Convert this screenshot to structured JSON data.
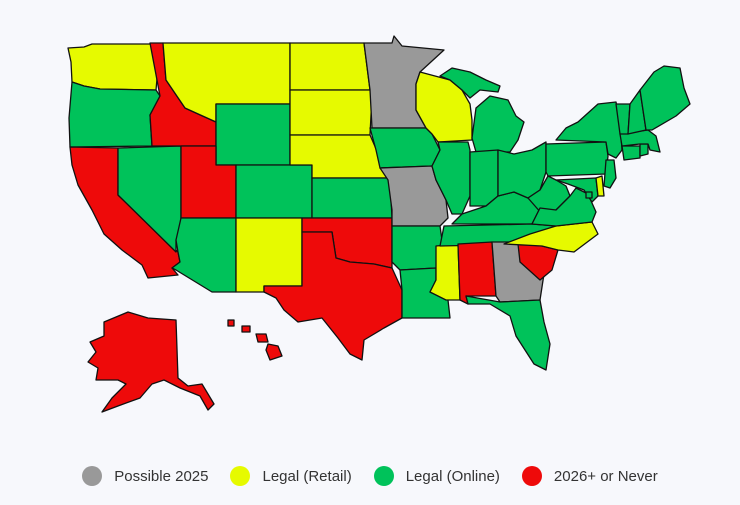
{
  "legend": {
    "items": [
      {
        "label": "Possible 2025",
        "status": "possible",
        "color": "#999999"
      },
      {
        "label": "Legal (Retail)",
        "status": "retail",
        "color": "#e6fa00"
      },
      {
        "label": "Legal (Online)",
        "status": "online",
        "color": "#00c25a"
      },
      {
        "label": "2026+ or Never",
        "status": "never",
        "color": "#ee0a0a"
      }
    ]
  },
  "states": {
    "WA": "retail",
    "OR": "online",
    "CA": "never",
    "NV": "online",
    "ID": "never",
    "MT": "retail",
    "WY": "online",
    "UT": "never",
    "AZ": "online",
    "CO": "online",
    "NM": "retail",
    "ND": "retail",
    "SD": "retail",
    "NE": "retail",
    "KS": "online",
    "OK": "never",
    "TX": "never",
    "MN": "possible",
    "IA": "online",
    "MO": "possible",
    "AR": "online",
    "LA": "online",
    "WI": "retail",
    "IL": "online",
    "MS": "retail",
    "MI": "online",
    "IN": "online",
    "KY": "online",
    "TN": "online",
    "AL": "never",
    "OH": "online",
    "GA": "possible",
    "FL": "online",
    "SC": "never",
    "NC": "retail",
    "WV": "online",
    "VA": "online",
    "PA": "online",
    "NY": "online",
    "MD": "online",
    "DE": "retail",
    "NJ": "online",
    "CT": "online",
    "RI": "online",
    "MA": "online",
    "VT": "online",
    "NH": "online",
    "ME": "online",
    "DC": "online",
    "AK": "never",
    "HI": "never"
  }
}
